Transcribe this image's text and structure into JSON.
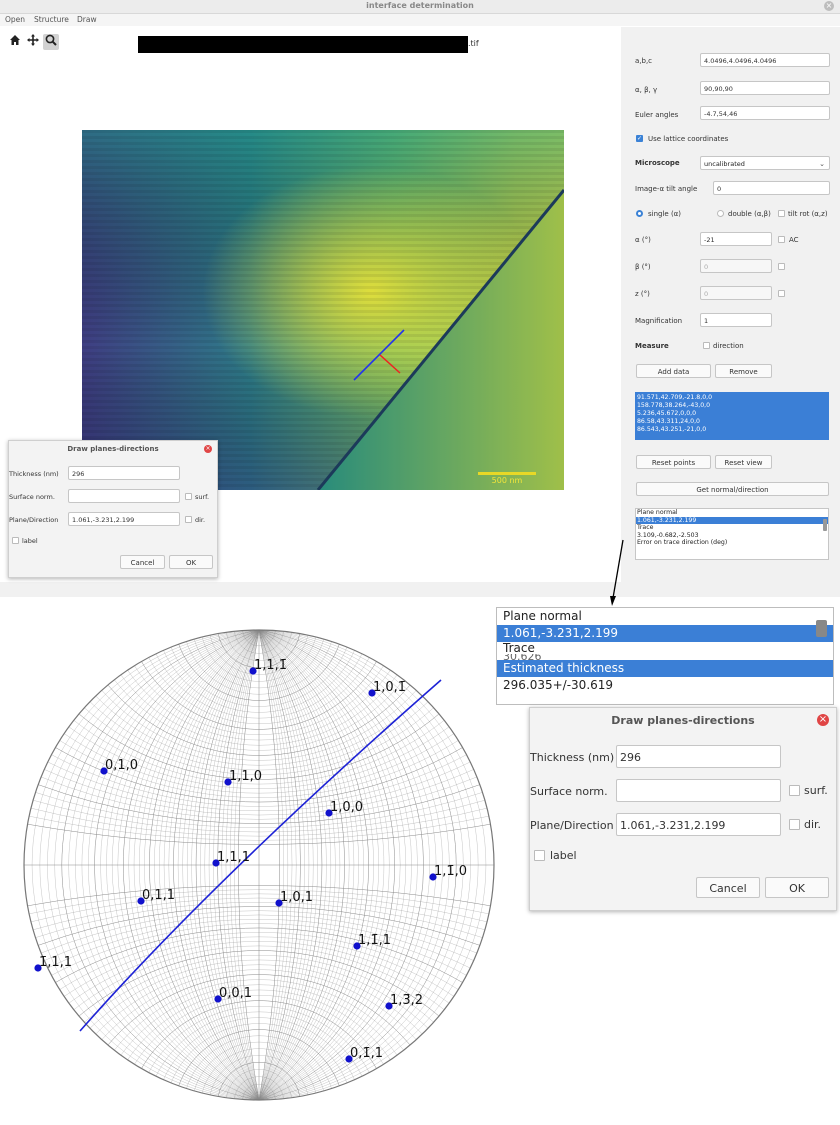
{
  "window": {
    "title": "interface determination"
  },
  "menu": {
    "items": [
      "Open",
      "Structure",
      "Draw"
    ]
  },
  "toolbar": {
    "tools": [
      "home-icon",
      "pan-icon",
      "zoom-icon"
    ]
  },
  "image": {
    "filename_suffix": ".tif",
    "scalebar_label": "500 nm"
  },
  "panel": {
    "abc_label": "a,b,c",
    "abc_value": "4.0496,4.0496,4.0496",
    "angles_label": "α, β, γ",
    "angles_value": "90,90,90",
    "euler_label": "Euler angles",
    "euler_value": "-4.7,54,46",
    "lattice_label": "Use lattice coordinates",
    "microscope_label": "Microscope",
    "microscope_value": "uncalibrated",
    "tilt_label": "Image-α tilt angle",
    "tilt_value": "0",
    "single_label": "single (α)",
    "double_label": "double (α,β)",
    "tiltrot_label": "tilt rot (α,z)",
    "alpha_label": "α (°)",
    "alpha_value": "-21",
    "ac_label": "AC",
    "beta_label": "β (°)",
    "beta_value": "0",
    "z_label": "z (°)",
    "z_value": "0",
    "mag_label": "Magnification",
    "mag_value": "1",
    "measure_label": "Measure",
    "direction_label": "direction",
    "add_data": "Add data",
    "remove": "Remove",
    "data_rows": [
      "91.571,42.709,-21.8,0,0",
      "158.778,38.264,-43,0,0",
      "5.236,45.672,0,0,0",
      "86.58,43.311,24,0,0",
      "86.543,43.251,-21,0,0"
    ],
    "reset_points": "Reset points",
    "reset_view": "Reset view",
    "get_normal": "Get normal/direction",
    "results": [
      "Plane normal",
      "1.061,-3.231,2.199",
      "Trace",
      "3.109,-0.682,-2.503",
      "Error on trace direction (deg)"
    ]
  },
  "dialog": {
    "title": "Draw planes-directions",
    "thickness_label": "Thickness (nm)",
    "thickness_value": "296",
    "surface_label": "Surface norm.",
    "surface_value": "",
    "surf_label": "surf.",
    "plane_label": "Plane/Direction",
    "plane_value": "1.061,-3.231,2.199",
    "dir_label": "dir.",
    "label_label": "label",
    "cancel": "Cancel",
    "ok": "OK"
  },
  "zoom_list": [
    "Plane normal",
    "1.061,-3.231,2.199",
    "Trace",
    "30.626",
    "Estimated thickness",
    "296.035+/-30.619"
  ],
  "stereo": {
    "poles": [
      {
        "label": "1,1,1̄",
        "base": "1,1,1",
        "bar": 2
      },
      {
        "label": "1,0,1̄",
        "base": "1,0,1",
        "bar": 2
      },
      {
        "label": "0,1,0"
      },
      {
        "label": "1,1,0"
      },
      {
        "label": "1,0,0"
      },
      {
        "label": "1,1,1"
      },
      {
        "label": "1,1̄,0",
        "base": "1,1,0",
        "bar": 1
      },
      {
        "label": "0,1,1"
      },
      {
        "label": "1,0,1"
      },
      {
        "label": "1,1̄,1",
        "base": "1,1,1",
        "bar": 1
      },
      {
        "label": "1̄,1,1",
        "base": "1,1,1",
        "bar": 0
      },
      {
        "label": "0,0,1"
      },
      {
        "label": "1,3̄,2",
        "base": "1,3,2",
        "bar": 1
      },
      {
        "label": "0,1̄,1",
        "base": "0,1,1",
        "bar": 1
      }
    ]
  }
}
